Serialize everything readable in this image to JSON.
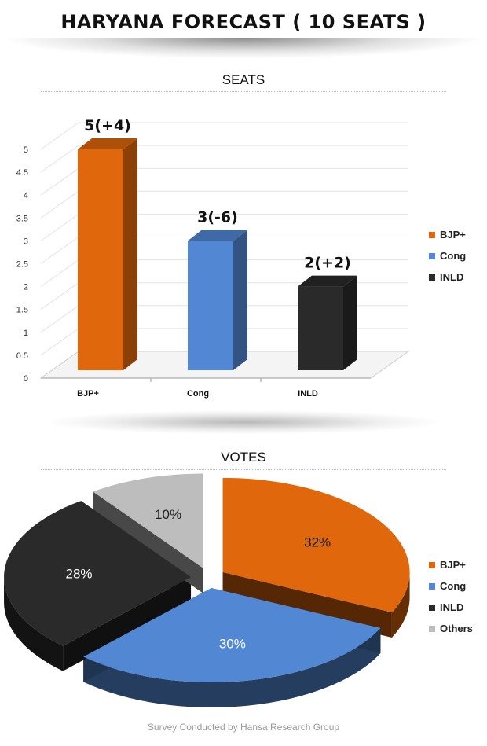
{
  "title": "HARYANA FORECAST ( 10 SEATS )",
  "seats_heading": "SEATS",
  "votes_heading": "VOTES",
  "footer": "Survey Conducted by Hansa Research Group",
  "colors": {
    "BJP+": "#e0670b",
    "Cong": "#5288d3",
    "INLD": "#2a2a2a",
    "Others": "#bdbdbd"
  },
  "chart_data": [
    {
      "type": "bar",
      "title": "SEATS",
      "categories": [
        "BJP+",
        "Cong",
        "INLD"
      ],
      "values": [
        5,
        3,
        2
      ],
      "data_labels": [
        "5(+4)",
        "3(-6)",
        "2(+2)"
      ],
      "ylim": [
        0,
        5
      ],
      "y_ticks": [
        "0",
        "0.5",
        "1",
        "1.5",
        "2",
        "2.5",
        "3",
        "3.5",
        "4",
        "4.5",
        "5"
      ],
      "grid": true,
      "legend": {
        "position": "right",
        "entries": [
          "BJP+",
          "Cong",
          "INLD"
        ]
      }
    },
    {
      "type": "pie",
      "title": "VOTES",
      "categories": [
        "BJP+",
        "Cong",
        "INLD",
        "Others"
      ],
      "values": [
        32,
        30,
        28,
        10
      ],
      "data_labels": [
        "32%",
        "30%",
        "28%",
        "10%"
      ],
      "legend": {
        "position": "right",
        "entries": [
          "BJP+",
          "Cong",
          "INLD",
          "Others"
        ]
      }
    }
  ]
}
